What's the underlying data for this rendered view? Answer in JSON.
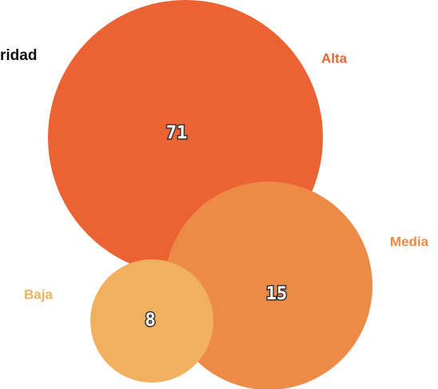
{
  "chart_data": {
    "type": "bubble",
    "title": "ridad",
    "categories": [
      "Alta",
      "Media",
      "Baja"
    ],
    "values": [
      71,
      15,
      8
    ],
    "colors": [
      "#ec6333",
      "#ed8a48",
      "#f0b060"
    ]
  }
}
